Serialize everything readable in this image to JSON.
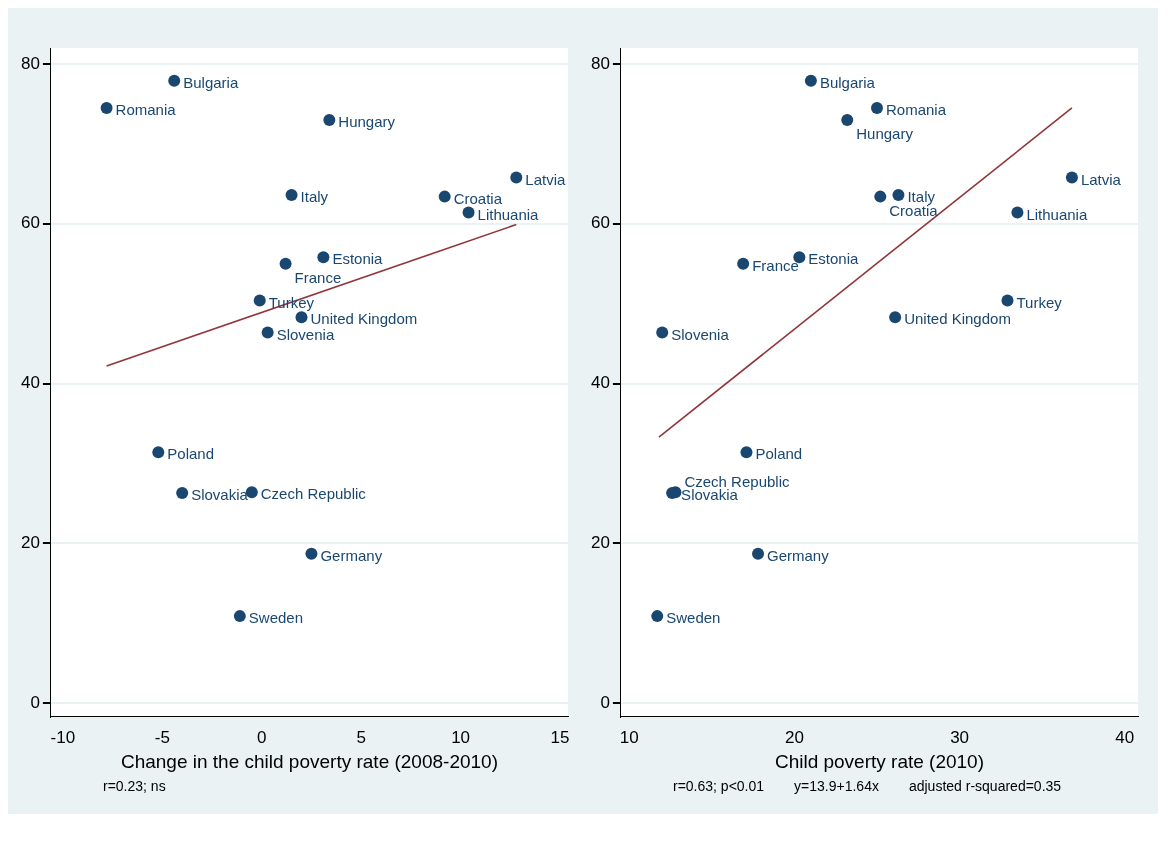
{
  "chart_data": [
    {
      "type": "scatter",
      "xlabel": "Change in the child poverty rate (2008-2010)",
      "xlim": [
        -10.6,
        15.4
      ],
      "xticks": [
        -10,
        -5,
        0,
        5,
        10,
        15
      ],
      "ylim": [
        -1.7,
        82
      ],
      "yticks": [
        0,
        20,
        40,
        60,
        80
      ],
      "grid": "y",
      "annotations": [
        "r=0.23; ns"
      ],
      "series": [
        {
          "color": "#1a476f",
          "marker": "circle",
          "x": [
            -4.4,
            -7.8,
            3.4,
            12.8,
            1.5,
            9.2,
            10.4,
            3.1,
            1.2,
            -0.1,
            2.0,
            0.3,
            -5.2,
            -4.0,
            -0.5,
            2.5,
            -1.1
          ],
          "values": [
            77.9,
            74.5,
            73.0,
            65.8,
            63.6,
            63.4,
            61.4,
            55.8,
            55.0,
            50.4,
            48.3,
            46.4,
            31.4,
            26.3,
            26.4,
            18.7,
            10.9
          ],
          "value_labels": [
            "Bulgaria",
            "Romania",
            "Hungary",
            "Latvia",
            "Italy",
            "Croatia",
            "Lithuania",
            "Estonia",
            "France",
            "Turkey",
            "United Kingdom",
            "Slovenia",
            "Poland",
            "Slovakia",
            "Czech Republic",
            "Germany",
            "Sweden"
          ]
        },
        {
          "type": "line",
          "color": "#90353b",
          "marker": "none",
          "line_style": "solid",
          "x": [
            -7.8,
            12.8
          ],
          "values": [
            42.2,
            59.9
          ]
        }
      ]
    },
    {
      "type": "scatter",
      "xlabel": "Child poverty rate (2010)",
      "xlim": [
        9.5,
        40.8
      ],
      "xticks": [
        10,
        20,
        30,
        40
      ],
      "ylim": [
        -1.7,
        82
      ],
      "yticks": [
        0,
        20,
        40,
        60,
        80
      ],
      "grid": "y",
      "annotations": [
        "r=0.63; p<0.01",
        "y=13.9+1.64x",
        "adjusted r-squared=0.35"
      ],
      "series": [
        {
          "color": "#1a476f",
          "marker": "circle",
          "x": [
            21.0,
            25.0,
            23.2,
            36.8,
            26.3,
            25.2,
            33.5,
            20.3,
            16.9,
            32.9,
            26.1,
            12.0,
            17.1,
            12.6,
            12.8,
            17.8,
            11.7
          ],
          "values": [
            77.9,
            74.5,
            73.0,
            65.8,
            63.6,
            63.4,
            61.4,
            55.8,
            55.0,
            50.4,
            48.3,
            46.4,
            31.4,
            26.3,
            26.4,
            18.7,
            10.9
          ],
          "value_labels": [
            "Bulgaria",
            "Romania",
            "Hungary",
            "Latvia",
            "Italy",
            "Croatia",
            "Lithuania",
            "Estonia",
            "France",
            "Turkey",
            "United Kingdom",
            "Slovenia",
            "Poland",
            "Slovakia",
            "Czech Republic",
            "Germany",
            "Sweden"
          ]
        },
        {
          "type": "line",
          "color": "#90353b",
          "marker": "none",
          "line_style": "solid",
          "x": [
            11.8,
            36.8
          ],
          "values": [
            33.3,
            74.5
          ]
        }
      ]
    }
  ]
}
